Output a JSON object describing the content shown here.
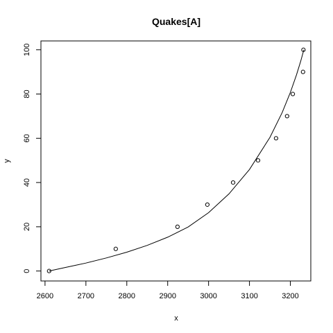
{
  "chart_data": {
    "type": "scatter",
    "title": "Quakes[A]",
    "xlabel": "x",
    "ylabel": "y",
    "xlim": [
      2590,
      2250
    ],
    "ylim": [
      -4.5,
      104
    ],
    "x_ticks": [
      2600,
      2700,
      2800,
      2900,
      3000,
      3100,
      3200
    ],
    "y_ticks": [
      0,
      20,
      40,
      60,
      80,
      100
    ],
    "grid": false,
    "legend": "none",
    "points": [
      {
        "x": 2610,
        "y": 0
      },
      {
        "x": 2773,
        "y": 10
      },
      {
        "x": 2924,
        "y": 20
      },
      {
        "x": 2997,
        "y": 30
      },
      {
        "x": 3060,
        "y": 40
      },
      {
        "x": 3121,
        "y": 50
      },
      {
        "x": 3165,
        "y": 60
      },
      {
        "x": 3192,
        "y": 70
      },
      {
        "x": 3206,
        "y": 80
      },
      {
        "x": 3231,
        "y": 90
      },
      {
        "x": 3232,
        "y": 100
      }
    ],
    "fit_curve": [
      {
        "x": 2610,
        "y": 0
      },
      {
        "x": 2650,
        "y": 1.6
      },
      {
        "x": 2700,
        "y": 3.6
      },
      {
        "x": 2750,
        "y": 5.9
      },
      {
        "x": 2800,
        "y": 8.5
      },
      {
        "x": 2850,
        "y": 11.6
      },
      {
        "x": 2900,
        "y": 15.3
      },
      {
        "x": 2950,
        "y": 19.9
      },
      {
        "x": 3000,
        "y": 26.4
      },
      {
        "x": 3050,
        "y": 34.9
      },
      {
        "x": 3100,
        "y": 45.9
      },
      {
        "x": 3150,
        "y": 60.4
      },
      {
        "x": 3180,
        "y": 71.6
      },
      {
        "x": 3200,
        "y": 80.7
      },
      {
        "x": 3215,
        "y": 88.7
      },
      {
        "x": 3225,
        "y": 94.7
      },
      {
        "x": 3233,
        "y": 100
      }
    ]
  }
}
